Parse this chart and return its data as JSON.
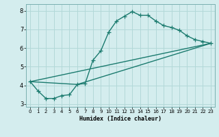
{
  "xlabel": "Humidex (Indice chaleur)",
  "background_color": "#d4edee",
  "grid_color": "#b2d8d8",
  "line_color": "#1a7a6e",
  "xlim": [
    -0.5,
    23.5
  ],
  "ylim": [
    2.85,
    8.35
  ],
  "yticks": [
    3,
    4,
    5,
    6,
    7,
    8
  ],
  "xticks": [
    0,
    1,
    2,
    3,
    4,
    5,
    6,
    7,
    8,
    9,
    10,
    11,
    12,
    13,
    14,
    15,
    16,
    17,
    18,
    19,
    20,
    21,
    22,
    23
  ],
  "series1_x": [
    0,
    1,
    2,
    3,
    4,
    5,
    6,
    7,
    8,
    9,
    10,
    11,
    12,
    13,
    14,
    15,
    16,
    17,
    18,
    19,
    20,
    21,
    22,
    23
  ],
  "series1_y": [
    4.2,
    3.7,
    3.3,
    3.3,
    3.45,
    3.5,
    4.05,
    4.1,
    5.35,
    5.85,
    6.85,
    7.45,
    7.7,
    7.95,
    7.75,
    7.75,
    7.45,
    7.2,
    7.1,
    6.95,
    6.65,
    6.45,
    6.35,
    6.25
  ],
  "series2_x": [
    0,
    6,
    23
  ],
  "series2_y": [
    4.2,
    4.05,
    6.25
  ],
  "series3_x": [
    0,
    23
  ],
  "series3_y": [
    4.2,
    6.25
  ],
  "marker_size": 4,
  "line_width": 1.0
}
